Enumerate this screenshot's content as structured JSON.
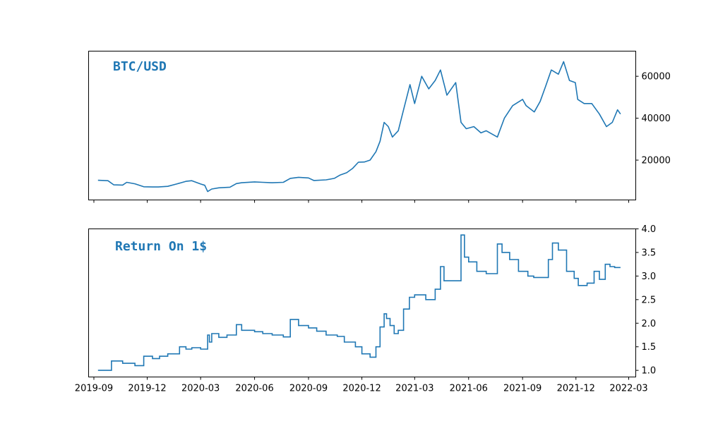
{
  "colors": {
    "line": "#1f77b4",
    "axis": "#000000",
    "background": "#ffffff"
  },
  "chart_data": [
    {
      "type": "line",
      "title": "BTC/USD",
      "xlabel": "",
      "ylabel": "",
      "y_axis_side": "right",
      "grid": false,
      "xlim": [
        "2019-08-23",
        "2022-03-13"
      ],
      "ylim": [
        1000,
        72000
      ],
      "yticks": [
        20000,
        40000,
        60000
      ],
      "ytick_labels": [
        "20000",
        "40000",
        "60000"
      ],
      "show_xtick_labels": false,
      "series": [
        {
          "x": [
            "2019-09-08",
            "2019-09-25",
            "2019-10-05",
            "2019-10-20",
            "2019-10-27",
            "2019-11-10",
            "2019-11-25",
            "2019-12-10",
            "2019-12-20",
            "2020-01-05",
            "2020-01-20",
            "2020-02-05",
            "2020-02-15",
            "2020-03-01",
            "2020-03-08",
            "2020-03-13",
            "2020-03-20",
            "2020-04-01",
            "2020-04-20",
            "2020-05-01",
            "2020-05-10",
            "2020-06-01",
            "2020-06-15",
            "2020-07-01",
            "2020-07-20",
            "2020-08-01",
            "2020-08-15",
            "2020-09-01",
            "2020-09-10",
            "2020-10-01",
            "2020-10-15",
            "2020-10-25",
            "2020-11-05",
            "2020-11-15",
            "2020-11-25",
            "2020-12-05",
            "2020-12-15",
            "2020-12-25",
            "2021-01-01",
            "2021-01-08",
            "2021-01-15",
            "2021-01-22",
            "2021-02-01",
            "2021-02-10",
            "2021-02-21",
            "2021-03-01",
            "2021-03-13",
            "2021-03-25",
            "2021-04-05",
            "2021-04-14",
            "2021-04-25",
            "2021-05-10",
            "2021-05-19",
            "2021-05-28",
            "2021-06-10",
            "2021-06-22",
            "2021-07-01",
            "2021-07-20",
            "2021-08-01",
            "2021-08-15",
            "2021-09-01",
            "2021-09-07",
            "2021-09-21",
            "2021-10-01",
            "2021-10-10",
            "2021-10-20",
            "2021-11-01",
            "2021-11-10",
            "2021-11-20",
            "2021-11-30",
            "2021-12-04",
            "2021-12-15",
            "2021-12-28",
            "2022-01-10",
            "2022-01-22",
            "2022-02-01",
            "2022-02-10",
            "2022-02-15"
          ],
          "values": [
            10400,
            10200,
            8200,
            8100,
            9400,
            8700,
            7300,
            7200,
            7200,
            7500,
            8600,
            9900,
            10200,
            8600,
            8000,
            5000,
            6200,
            6800,
            7100,
            8800,
            9200,
            9600,
            9400,
            9200,
            9400,
            11300,
            11800,
            11500,
            10300,
            10600,
            11300,
            12900,
            14000,
            16000,
            19000,
            19100,
            20000,
            24000,
            29000,
            38000,
            36000,
            31000,
            34000,
            44000,
            56000,
            47000,
            60000,
            54000,
            58000,
            63000,
            51000,
            57000,
            38000,
            35000,
            36000,
            33000,
            34000,
            31000,
            40000,
            46000,
            49000,
            46000,
            43000,
            48000,
            55000,
            63000,
            61000,
            67000,
            58000,
            57000,
            49000,
            47000,
            47000,
            42000,
            36000,
            38000,
            44000,
            42000
          ]
        }
      ]
    },
    {
      "type": "line",
      "title": "Return On 1$",
      "xlabel": "",
      "ylabel": "",
      "y_axis_side": "right",
      "grid": false,
      "xlim": [
        "2019-08-23",
        "2022-03-13"
      ],
      "ylim": [
        0.86,
        4.0
      ],
      "yticks": [
        1.0,
        1.5,
        2.0,
        2.5,
        3.0,
        3.5,
        4.0
      ],
      "ytick_labels": [
        "1.0",
        "1.5",
        "2.0",
        "2.5",
        "3.0",
        "3.5",
        "4.0"
      ],
      "xticks": [
        "2019-09-01",
        "2019-12-01",
        "2020-03-01",
        "2020-06-01",
        "2020-09-01",
        "2020-12-01",
        "2021-03-01",
        "2021-06-01",
        "2021-09-01",
        "2021-12-01",
        "2022-03-01"
      ],
      "xtick_labels": [
        "2019-09",
        "2019-12",
        "2020-03",
        "2020-06",
        "2020-09",
        "2020-12",
        "2021-03",
        "2021-06",
        "2021-09",
        "2021-12",
        "2022-03"
      ],
      "series": [
        {
          "step": true,
          "x": [
            "2019-09-08",
            "2019-10-01",
            "2019-10-20",
            "2019-11-10",
            "2019-11-25",
            "2019-12-10",
            "2019-12-22",
            "2020-01-05",
            "2020-01-25",
            "2020-02-05",
            "2020-02-15",
            "2020-03-01",
            "2020-03-13",
            "2020-03-16",
            "2020-03-20",
            "2020-04-01",
            "2020-04-15",
            "2020-05-01",
            "2020-05-10",
            "2020-06-01",
            "2020-06-15",
            "2020-07-01",
            "2020-07-20",
            "2020-08-01",
            "2020-08-15",
            "2020-09-01",
            "2020-09-15",
            "2020-10-01",
            "2020-10-20",
            "2020-11-01",
            "2020-11-20",
            "2020-12-01",
            "2020-12-15",
            "2020-12-25",
            "2021-01-01",
            "2021-01-08",
            "2021-01-12",
            "2021-01-18",
            "2021-01-25",
            "2021-02-01",
            "2021-02-10",
            "2021-02-20",
            "2021-03-01",
            "2021-03-20",
            "2021-04-05",
            "2021-04-14",
            "2021-04-20",
            "2021-05-19",
            "2021-05-25",
            "2021-06-01",
            "2021-06-15",
            "2021-07-01",
            "2021-07-20",
            "2021-07-28",
            "2021-08-10",
            "2021-08-25",
            "2021-09-10",
            "2021-09-20",
            "2021-10-01",
            "2021-10-15",
            "2021-10-22",
            "2021-11-01",
            "2021-11-15",
            "2021-11-28",
            "2021-12-05",
            "2021-12-20",
            "2022-01-01",
            "2022-01-10",
            "2022-01-20",
            "2022-01-28",
            "2022-02-05",
            "2022-02-15"
          ],
          "values": [
            1.0,
            1.2,
            1.15,
            1.1,
            1.3,
            1.25,
            1.3,
            1.35,
            1.5,
            1.45,
            1.48,
            1.45,
            1.75,
            1.6,
            1.78,
            1.7,
            1.75,
            1.97,
            1.85,
            1.82,
            1.78,
            1.75,
            1.71,
            2.08,
            1.95,
            1.9,
            1.83,
            1.75,
            1.72,
            1.6,
            1.5,
            1.35,
            1.28,
            1.5,
            1.92,
            2.2,
            2.1,
            1.95,
            1.78,
            1.85,
            2.3,
            2.55,
            2.6,
            2.5,
            2.72,
            3.2,
            2.9,
            3.87,
            3.4,
            3.3,
            3.1,
            3.05,
            3.68,
            3.5,
            3.35,
            3.1,
            3.0,
            2.97,
            2.97,
            3.35,
            3.7,
            3.55,
            3.1,
            2.95,
            2.8,
            2.85,
            3.1,
            2.93,
            3.25,
            3.2,
            3.18,
            3.18
          ]
        }
      ]
    }
  ]
}
